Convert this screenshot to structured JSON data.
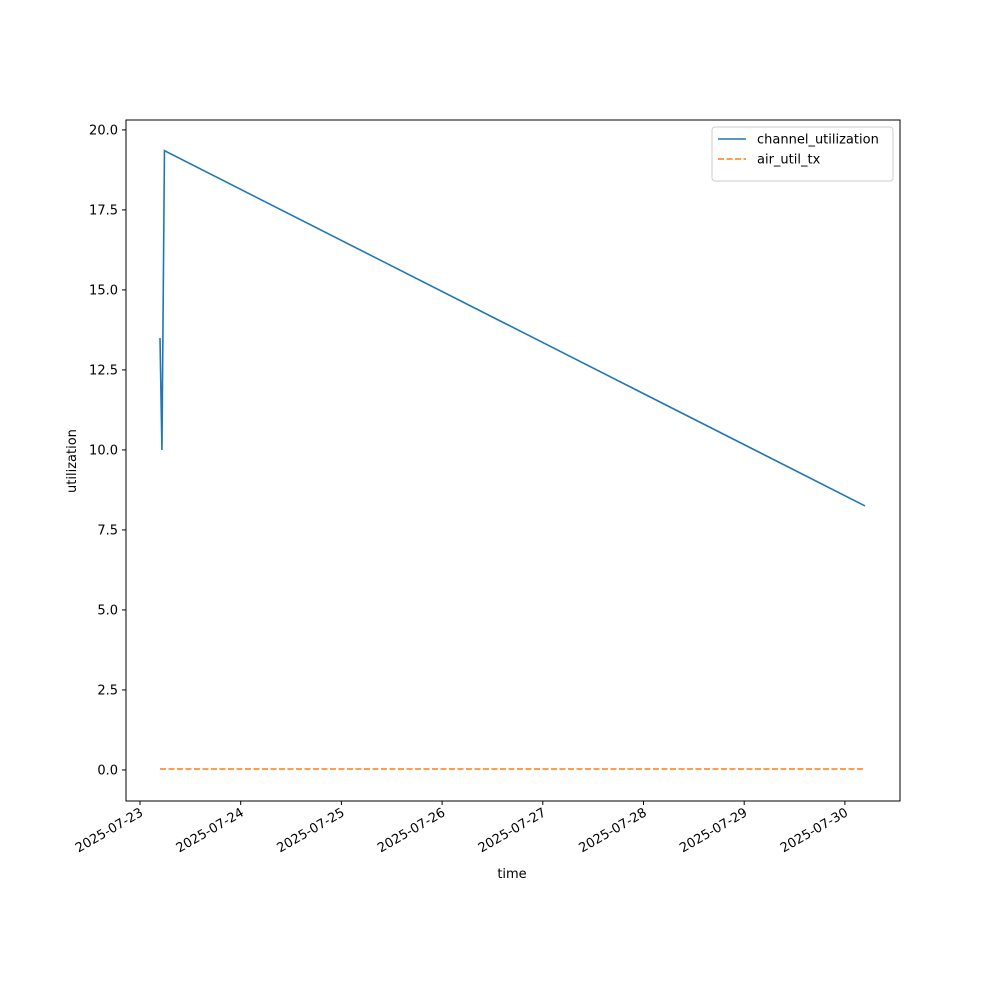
{
  "chart_data": {
    "type": "line",
    "xlabel": "time",
    "ylabel": "utilization",
    "x": [
      "2025-07-23T04:46",
      "2025-07-23T05:14",
      "2025-07-23T05:50",
      "2025-07-30T04:48"
    ],
    "series": [
      {
        "name": "channel_utilization",
        "color": "#1f77b4",
        "dash": "solid",
        "values": [
          13.5,
          10.0,
          19.35,
          8.25
        ]
      },
      {
        "name": "air_util_tx",
        "color": "#ff7f0e",
        "dash": "dashed",
        "values": [
          0.03,
          0.03,
          0.03,
          0.03
        ]
      }
    ],
    "xlim": [
      "2025-07-22T20:40",
      "2025-07-30T13:08"
    ],
    "xticks": [
      "2025-07-23",
      "2025-07-24",
      "2025-07-25",
      "2025-07-26",
      "2025-07-27",
      "2025-07-28",
      "2025-07-29",
      "2025-07-30"
    ],
    "ylim": [
      -0.97,
      20.31
    ],
    "yticks": [
      {
        "value": 0,
        "label": "0.0"
      },
      {
        "value": 2.5,
        "label": "2.5"
      },
      {
        "value": 5,
        "label": "5.0"
      },
      {
        "value": 7.5,
        "label": "7.5"
      },
      {
        "value": 10,
        "label": "10.0"
      },
      {
        "value": 12.5,
        "label": "12.5"
      },
      {
        "value": 15,
        "label": "15.0"
      },
      {
        "value": 17.5,
        "label": "17.5"
      },
      {
        "value": 20,
        "label": "20.0"
      }
    ],
    "legend": "upper right",
    "grid": false
  }
}
